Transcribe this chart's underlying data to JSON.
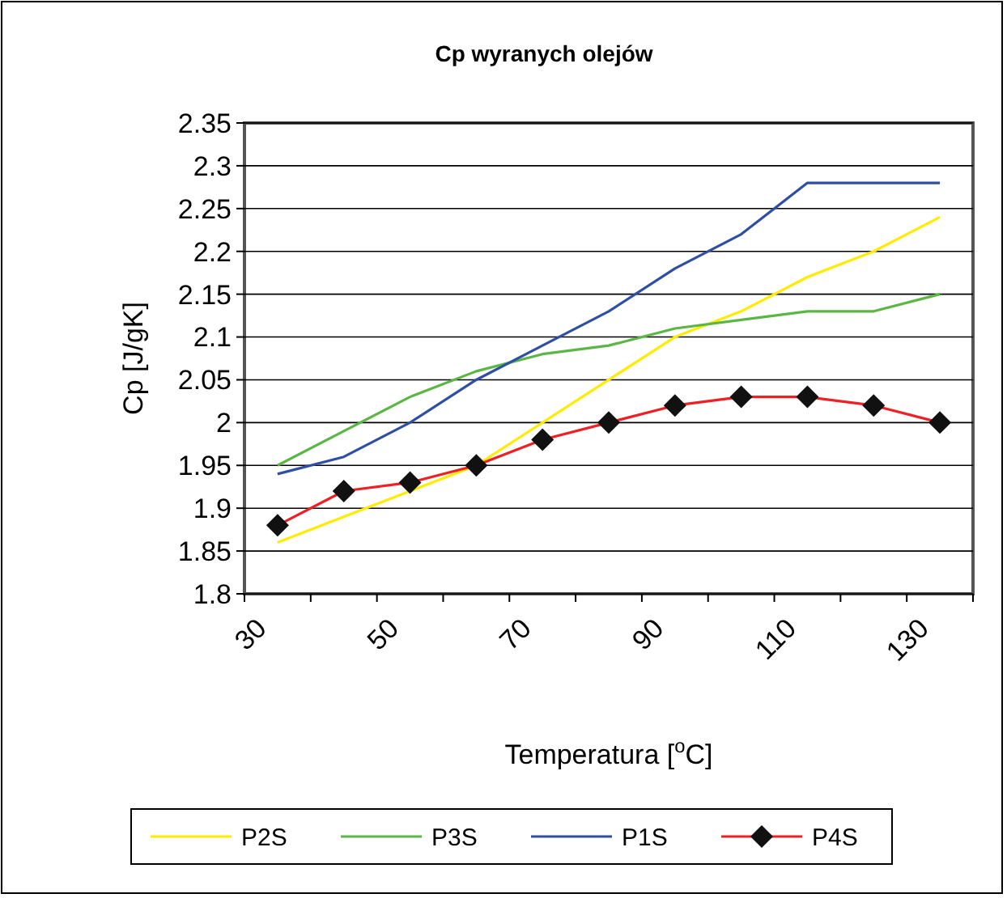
{
  "chart_data": {
    "type": "line",
    "title": "Cp wyranych olejów",
    "xlabel": "Temperatura [$^{o}$C]",
    "ylabel": "Cp  [J/gK]",
    "x": [
      35,
      45,
      55,
      65,
      75,
      85,
      95,
      105,
      115,
      125,
      135
    ],
    "series": [
      {
        "name": "P2S",
        "color": "#ffec00",
        "values": [
          1.86,
          1.89,
          1.92,
          1.95,
          2.0,
          2.05,
          2.1,
          2.13,
          2.17,
          2.2,
          2.24
        ]
      },
      {
        "name": "P3S",
        "color": "#5cb646",
        "values": [
          1.95,
          1.99,
          2.03,
          2.06,
          2.08,
          2.09,
          2.11,
          2.12,
          2.13,
          2.13,
          2.15
        ]
      },
      {
        "name": "P1S",
        "color": "#2e4fa3",
        "values": [
          1.94,
          1.96,
          2.0,
          2.05,
          2.09,
          2.13,
          2.18,
          2.22,
          2.28,
          2.28,
          2.28
        ]
      },
      {
        "name": "P4S",
        "color": "#ee2024",
        "marker": "diamond",
        "values": [
          1.88,
          1.92,
          1.93,
          1.95,
          1.98,
          2.0,
          2.02,
          2.03,
          2.03,
          2.02,
          2.0
        ]
      }
    ],
    "xlim": [
      30,
      140
    ],
    "xticks": [
      30,
      {
        "value": 40,
        "label": null
      },
      50,
      {
        "value": 60,
        "label": null
      },
      70,
      {
        "value": 80,
        "label": null
      },
      90,
      {
        "value": 100,
        "label": null
      },
      110,
      {
        "value": 120,
        "label": null
      },
      130,
      {
        "value": 140,
        "label": null
      }
    ],
    "ylim": [
      1.8,
      2.35
    ],
    "yticks": [
      1.8,
      1.85,
      1.9,
      1.95,
      2,
      2.05,
      2.1,
      2.15,
      2.2,
      2.25,
      2.3,
      2.35
    ],
    "grid": "y",
    "legend": "bottom",
    "marker": "none"
  }
}
